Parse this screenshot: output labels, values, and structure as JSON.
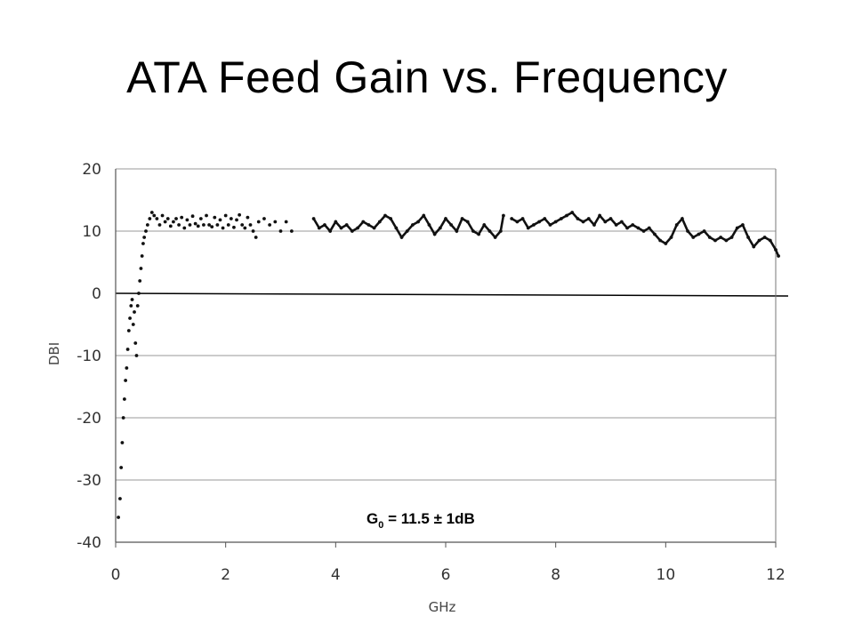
{
  "slide": {
    "title": "ATA Feed Gain vs. Frequency"
  },
  "chart_data": {
    "type": "scatter",
    "title": "",
    "xlabel": "GHz",
    "ylabel": "DBI",
    "xlim": [
      0,
      12
    ],
    "ylim": [
      -40,
      20
    ],
    "x_ticks": [
      "0",
      "2",
      "4",
      "6",
      "8",
      "10",
      "12"
    ],
    "y_ticks": [
      "20",
      "10",
      "0",
      "-10",
      "-20",
      "-30",
      "-40"
    ],
    "grid": "horizontal",
    "annotation": {
      "prefix": "G",
      "subscript": "0",
      "suffix": " = 11.5 ± 1dB"
    },
    "series": [
      {
        "segments": [
          [
            [
              0.05,
              -36
            ],
            [
              0.08,
              -33
            ],
            [
              0.1,
              -28
            ],
            [
              0.12,
              -24
            ],
            [
              0.14,
              -20
            ],
            [
              0.16,
              -17
            ],
            [
              0.18,
              -14
            ],
            [
              0.2,
              -12
            ],
            [
              0.22,
              -9
            ],
            [
              0.24,
              -6
            ],
            [
              0.26,
              -4
            ],
            [
              0.28,
              -2
            ],
            [
              0.3,
              -1
            ],
            [
              0.32,
              -5
            ],
            [
              0.34,
              -3
            ],
            [
              0.36,
              -8
            ],
            [
              0.38,
              -10
            ],
            [
              0.4,
              -2
            ],
            [
              0.42,
              0
            ],
            [
              0.44,
              2
            ],
            [
              0.46,
              4
            ],
            [
              0.48,
              6
            ],
            [
              0.5,
              8
            ],
            [
              0.52,
              9
            ],
            [
              0.55,
              10
            ],
            [
              0.58,
              11
            ],
            [
              0.62,
              12
            ],
            [
              0.66,
              13
            ],
            [
              0.7,
              12.5
            ],
            [
              0.75,
              12
            ],
            [
              0.8,
              11
            ],
            [
              0.85,
              12.5
            ],
            [
              0.9,
              11.5
            ],
            [
              0.95,
              12
            ],
            [
              1.0,
              10.8
            ],
            [
              1.05,
              11.5
            ],
            [
              1.1,
              12
            ],
            [
              1.15,
              11
            ],
            [
              1.2,
              12.2
            ],
            [
              1.25,
              10.5
            ],
            [
              1.3,
              11.8
            ],
            [
              1.35,
              11
            ],
            [
              1.4,
              12.4
            ],
            [
              1.45,
              11.2
            ],
            [
              1.5,
              10.8
            ],
            [
              1.55,
              12
            ],
            [
              1.6,
              11
            ],
            [
              1.65,
              12.5
            ],
            [
              1.7,
              11
            ],
            [
              1.75,
              10.7
            ],
            [
              1.8,
              12.2
            ],
            [
              1.85,
              11
            ],
            [
              1.9,
              11.8
            ],
            [
              1.95,
              10.5
            ],
            [
              2.0,
              12.5
            ],
            [
              2.05,
              11
            ],
            [
              2.1,
              12
            ],
            [
              2.15,
              10.6
            ],
            [
              2.2,
              11.8
            ],
            [
              2.25,
              12.6
            ],
            [
              2.3,
              11
            ],
            [
              2.35,
              10.5
            ],
            [
              2.4,
              12.2
            ],
            [
              2.45,
              11
            ],
            [
              2.5,
              10
            ],
            [
              2.55,
              9
            ],
            [
              2.6,
              11.5
            ],
            [
              2.7,
              12
            ],
            [
              2.8,
              11
            ],
            [
              2.9,
              11.5
            ],
            [
              3.0,
              10
            ],
            [
              3.1,
              11.5
            ],
            [
              3.2,
              10
            ]
          ],
          [
            [
              3.6,
              12
            ],
            [
              3.7,
              10.5
            ],
            [
              3.8,
              11
            ],
            [
              3.9,
              10
            ],
            [
              4.0,
              11.5
            ],
            [
              4.1,
              10.5
            ],
            [
              4.2,
              11
            ],
            [
              4.3,
              10
            ],
            [
              4.4,
              10.5
            ],
            [
              4.5,
              11.5
            ],
            [
              4.6,
              11
            ],
            [
              4.7,
              10.5
            ],
            [
              4.8,
              11.5
            ],
            [
              4.9,
              12.5
            ],
            [
              5.0,
              12
            ],
            [
              5.1,
              10.5
            ],
            [
              5.2,
              9
            ],
            [
              5.3,
              10
            ],
            [
              5.4,
              11
            ],
            [
              5.5,
              11.5
            ],
            [
              5.6,
              12.5
            ],
            [
              5.7,
              11
            ],
            [
              5.8,
              9.5
            ],
            [
              5.9,
              10.5
            ],
            [
              6.0,
              12
            ],
            [
              6.1,
              11
            ],
            [
              6.2,
              10
            ],
            [
              6.3,
              12
            ],
            [
              6.4,
              11.5
            ],
            [
              6.5,
              10
            ],
            [
              6.6,
              9.5
            ],
            [
              6.7,
              11
            ],
            [
              6.8,
              10
            ],
            [
              6.9,
              9
            ],
            [
              7.0,
              10
            ],
            [
              7.05,
              12.5
            ]
          ],
          [
            [
              7.2,
              12
            ],
            [
              7.3,
              11.5
            ],
            [
              7.4,
              12
            ],
            [
              7.5,
              10.5
            ],
            [
              7.6,
              11
            ],
            [
              7.7,
              11.5
            ],
            [
              7.8,
              12
            ],
            [
              7.9,
              11
            ],
            [
              8.0,
              11.5
            ],
            [
              8.1,
              12
            ],
            [
              8.2,
              12.5
            ],
            [
              8.3,
              13
            ],
            [
              8.4,
              12
            ],
            [
              8.5,
              11.5
            ],
            [
              8.6,
              12
            ],
            [
              8.7,
              11
            ],
            [
              8.8,
              12.5
            ],
            [
              8.9,
              11.5
            ],
            [
              9.0,
              12
            ],
            [
              9.1,
              11
            ],
            [
              9.2,
              11.5
            ],
            [
              9.3,
              10.5
            ],
            [
              9.4,
              11
            ],
            [
              9.5,
              10.5
            ],
            [
              9.6,
              10
            ],
            [
              9.7,
              10.5
            ],
            [
              9.8,
              9.5
            ],
            [
              9.9,
              8.5
            ],
            [
              10.0,
              8
            ],
            [
              10.1,
              9
            ],
            [
              10.2,
              11
            ],
            [
              10.3,
              12
            ],
            [
              10.4,
              10
            ],
            [
              10.5,
              9
            ],
            [
              10.6,
              9.5
            ],
            [
              10.7,
              10
            ],
            [
              10.8,
              9
            ],
            [
              10.9,
              8.5
            ],
            [
              11.0,
              9
            ],
            [
              11.1,
              8.5
            ],
            [
              11.2,
              9
            ],
            [
              11.3,
              10.5
            ],
            [
              11.4,
              11
            ],
            [
              11.5,
              9
            ],
            [
              11.6,
              7.5
            ],
            [
              11.7,
              8.5
            ],
            [
              11.8,
              9
            ],
            [
              11.9,
              8.5
            ],
            [
              12.0,
              7
            ],
            [
              12.05,
              6
            ]
          ]
        ]
      }
    ]
  }
}
